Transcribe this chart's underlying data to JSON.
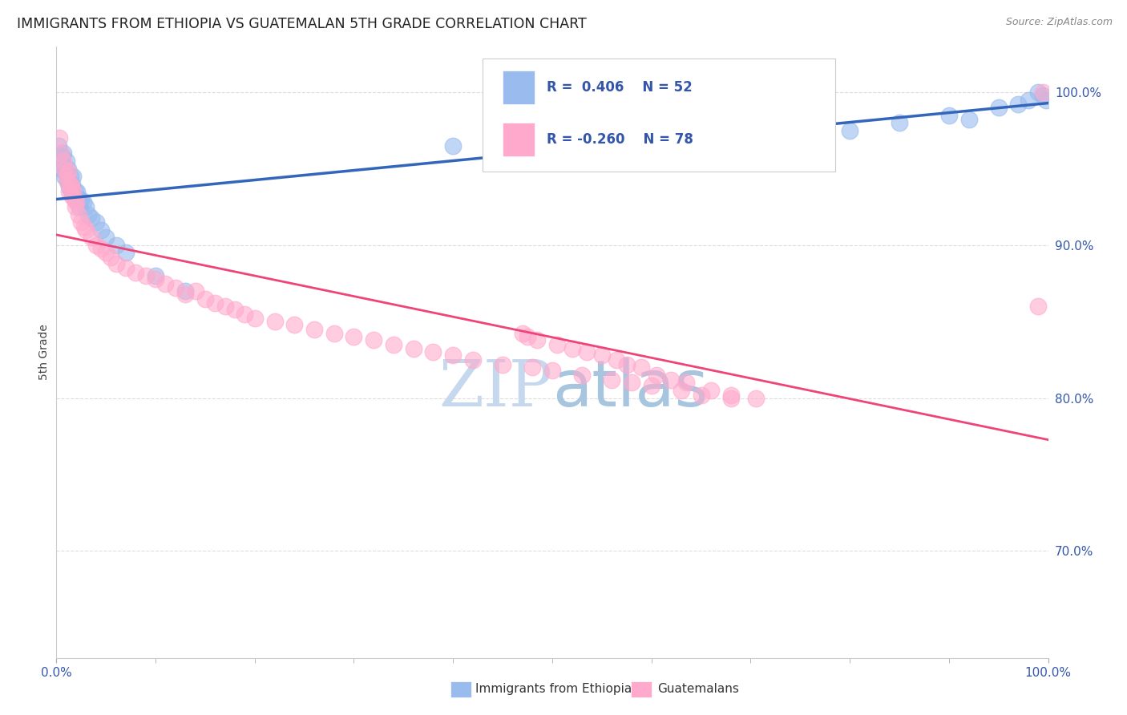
{
  "title": "IMMIGRANTS FROM ETHIOPIA VS GUATEMALAN 5TH GRADE CORRELATION CHART",
  "source": "Source: ZipAtlas.com",
  "ylabel": "5th Grade",
  "blue_color": "#99BBEE",
  "pink_color": "#FFAACC",
  "blue_line_color": "#3366BB",
  "pink_line_color": "#EE4477",
  "title_color": "#222222",
  "axis_label_color": "#3355AA",
  "watermark_color": "#C8DCF0",
  "background_color": "#FFFFFF",
  "grid_color": "#DDDDDD",
  "legend_r1": "R =  0.406",
  "legend_n1": "N = 52",
  "legend_r2": "R = -0.260",
  "legend_n2": "N = 78",
  "xlim": [
    0,
    100
  ],
  "ylim": [
    63,
    103
  ],
  "ytick_vals": [
    70.0,
    80.0,
    90.0,
    100.0
  ],
  "ytick_labels": [
    "70.0%",
    "80.0%",
    "90.0%",
    "100.0%"
  ],
  "xtick_vals": [
    0,
    100
  ],
  "xtick_labels": [
    "0.0%",
    "100.0%"
  ],
  "blue_x": [
    0.2,
    0.4,
    0.5,
    0.6,
    0.7,
    0.8,
    0.9,
    1.0,
    1.1,
    1.2,
    1.3,
    1.4,
    1.5,
    1.6,
    1.7,
    1.8,
    1.9,
    2.0,
    2.1,
    2.2,
    2.3,
    2.5,
    2.7,
    3.0,
    3.2,
    3.5,
    4.0,
    4.5,
    5.0,
    6.0,
    7.0,
    10.0,
    13.0,
    40.0,
    52.0,
    60.0,
    65.0,
    70.0,
    75.0,
    80.0,
    85.0,
    90.0,
    92.0,
    95.0,
    97.0,
    98.0,
    99.0,
    99.5,
    99.8,
    55.0,
    58.0,
    62.0
  ],
  "blue_y": [
    96.5,
    95.5,
    95.0,
    95.8,
    96.0,
    94.5,
    94.8,
    95.5,
    94.2,
    95.0,
    93.8,
    94.5,
    93.5,
    94.0,
    94.5,
    93.2,
    93.5,
    93.0,
    93.5,
    93.0,
    92.5,
    93.0,
    92.8,
    92.5,
    92.0,
    91.8,
    91.5,
    91.0,
    90.5,
    90.0,
    89.5,
    88.0,
    87.0,
    96.5,
    97.0,
    97.2,
    97.5,
    97.8,
    97.0,
    97.5,
    98.0,
    98.5,
    98.2,
    99.0,
    99.2,
    99.5,
    100.0,
    99.8,
    99.5,
    96.8,
    97.0,
    97.3
  ],
  "pink_x": [
    0.3,
    0.5,
    0.7,
    0.8,
    1.0,
    1.1,
    1.2,
    1.3,
    1.4,
    1.5,
    1.6,
    1.7,
    1.8,
    1.9,
    2.0,
    2.2,
    2.5,
    2.8,
    3.0,
    3.5,
    4.0,
    4.5,
    5.0,
    5.5,
    6.0,
    7.0,
    8.0,
    9.0,
    10.0,
    11.0,
    12.0,
    13.0,
    14.0,
    15.0,
    16.0,
    17.0,
    18.0,
    19.0,
    20.0,
    22.0,
    24.0,
    26.0,
    28.0,
    30.0,
    32.0,
    34.0,
    36.0,
    38.0,
    40.0,
    42.0,
    45.0,
    48.0,
    50.0,
    53.0,
    56.0,
    58.0,
    60.0,
    63.0,
    65.0,
    68.0,
    99.5,
    47.0,
    47.5,
    48.5,
    50.5,
    52.0,
    53.5,
    55.0,
    56.5,
    57.5,
    59.0,
    60.5,
    62.0,
    63.5,
    66.0,
    68.0,
    70.5,
    99.0
  ],
  "pink_y": [
    97.0,
    96.0,
    95.5,
    95.0,
    94.5,
    94.2,
    94.8,
    93.5,
    94.0,
    93.8,
    93.2,
    93.5,
    93.0,
    92.5,
    92.8,
    92.0,
    91.5,
    91.2,
    91.0,
    90.5,
    90.0,
    89.8,
    89.5,
    89.2,
    88.8,
    88.5,
    88.2,
    88.0,
    87.8,
    87.5,
    87.2,
    86.8,
    87.0,
    86.5,
    86.2,
    86.0,
    85.8,
    85.5,
    85.2,
    85.0,
    84.8,
    84.5,
    84.2,
    84.0,
    83.8,
    83.5,
    83.2,
    83.0,
    82.8,
    82.5,
    82.2,
    82.0,
    81.8,
    81.5,
    81.2,
    81.0,
    80.8,
    80.5,
    80.2,
    80.0,
    100.0,
    84.2,
    84.0,
    83.8,
    83.5,
    83.2,
    83.0,
    82.8,
    82.5,
    82.2,
    82.0,
    81.5,
    81.2,
    81.0,
    80.5,
    80.2,
    80.0,
    86.0
  ]
}
